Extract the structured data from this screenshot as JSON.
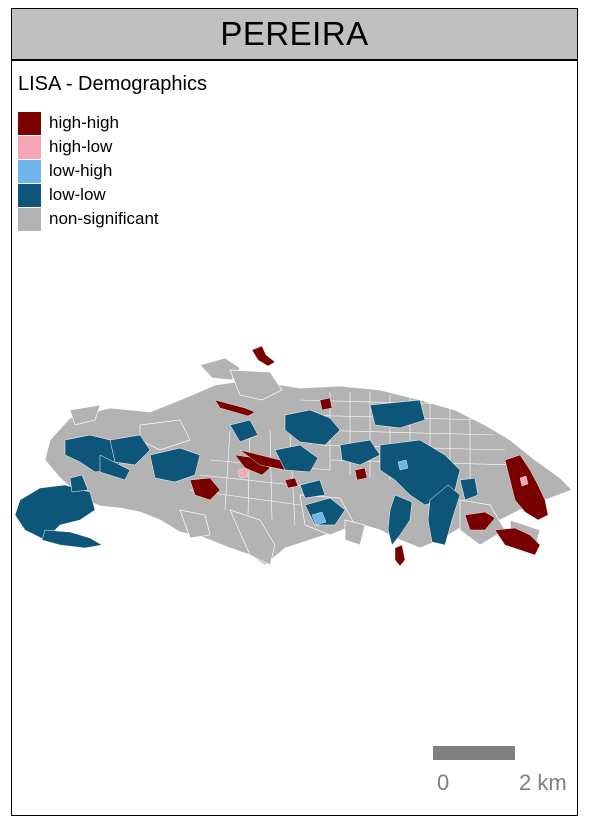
{
  "title": "PEREIRA",
  "legend": {
    "title": "LISA - Demographics",
    "items": [
      {
        "label": "high-high",
        "color": "#7a0000"
      },
      {
        "label": "high-low",
        "color": "#f4a6b4"
      },
      {
        "label": "low-high",
        "color": "#6fb4ea"
      },
      {
        "label": "low-low",
        "color": "#0d5679"
      },
      {
        "label": "non-significant",
        "color": "#b3b3b3"
      }
    ]
  },
  "scale_bar": {
    "start_label": "0",
    "end_label": "2 km"
  }
}
